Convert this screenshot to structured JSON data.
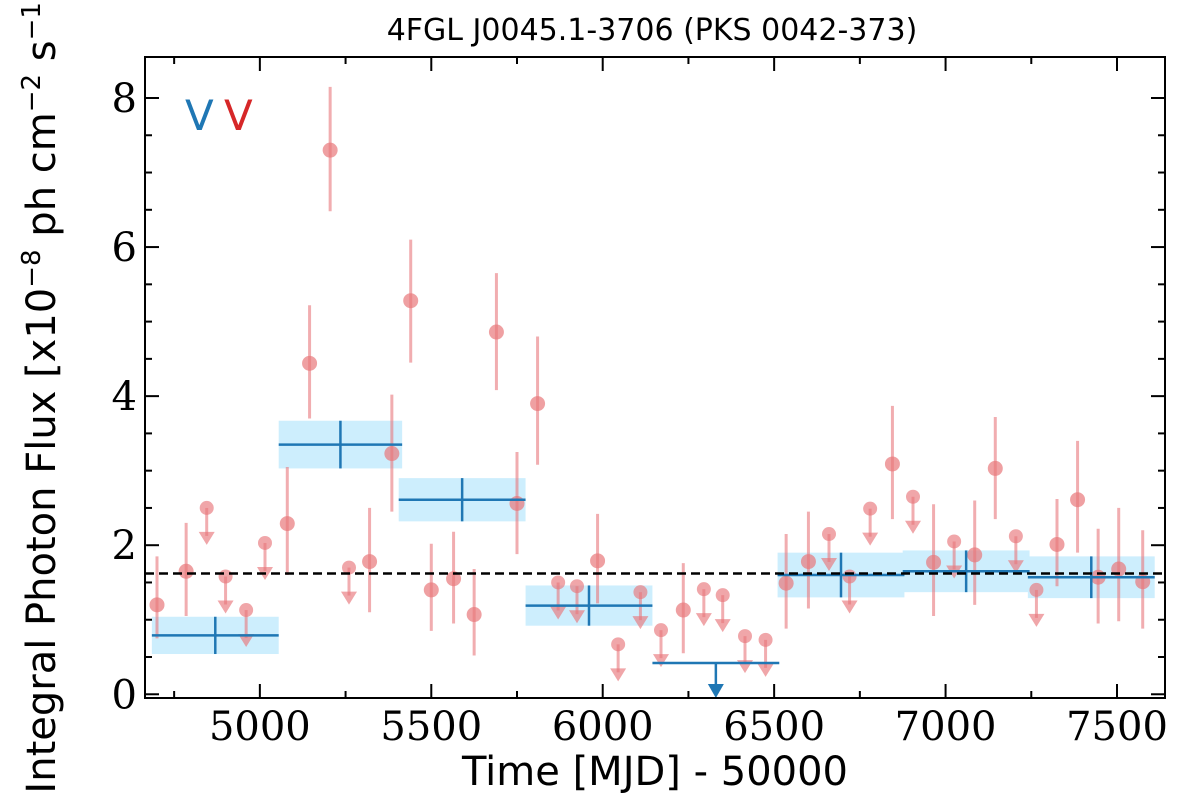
{
  "chart_data": {
    "type": "scatter",
    "title": "4FGL J0045.1-3706 (PKS 0042-373)",
    "xlabel": "Time [MJD] - 50000",
    "ylabel_main": "Integral Photon Flux [x10",
    "ylabel_exp1": "−8",
    "ylabel_mid": " ph cm",
    "ylabel_exp2": "−2",
    "ylabel_mid2": " s",
    "ylabel_exp3": "−1",
    "ylabel_end": "]",
    "xlim": [
      4665,
      7640
    ],
    "ylim": [
      -0.05,
      8.55
    ],
    "xticks": [
      5000,
      5500,
      6000,
      6500,
      7000,
      7500
    ],
    "yticks": [
      0,
      2,
      4,
      6,
      8
    ],
    "legend": {
      "position": "top-left",
      "marks": [
        {
          "text": "V",
          "color": "#1f77b4"
        },
        {
          "text": "V",
          "color": "#d62728"
        }
      ]
    },
    "mean_flux": 1.62,
    "colors": {
      "fine": "#e8777b",
      "coarse": "#1f77b4",
      "band": "#cdeefd",
      "mean_line": "#000000"
    },
    "coarse_bins": [
      {
        "x": 4870,
        "half_width": 185,
        "y": 0.79,
        "yerr": 0.25
      },
      {
        "x": 5235,
        "half_width": 180,
        "y": 3.35,
        "yerr": 0.32
      },
      {
        "x": 5590,
        "half_width": 185,
        "y": 2.61,
        "yerr": 0.29
      },
      {
        "x": 5960,
        "half_width": 185,
        "y": 1.19,
        "yerr": 0.27
      },
      {
        "x": 6330,
        "half_width": 185,
        "y": 0.42,
        "upper_limit": true
      },
      {
        "x": 6695,
        "half_width": 185,
        "y": 1.6,
        "yerr": 0.3
      },
      {
        "x": 7060,
        "half_width": 185,
        "y": 1.65,
        "yerr": 0.28
      },
      {
        "x": 7425,
        "half_width": 185,
        "y": 1.57,
        "yerr": 0.28
      }
    ],
    "fine_points": [
      {
        "x": 4700,
        "y": 1.2,
        "ylo": 0.75,
        "yhi": 1.85
      },
      {
        "x": 4785,
        "y": 1.65,
        "ylo": 1.05,
        "yhi": 2.3
      },
      {
        "x": 4845,
        "y": 2.5,
        "upper_limit": true
      },
      {
        "x": 4900,
        "y": 1.58,
        "upper_limit": true
      },
      {
        "x": 4960,
        "y": 1.13,
        "upper_limit": true
      },
      {
        "x": 5015,
        "y": 2.03,
        "upper_limit": true
      },
      {
        "x": 5080,
        "y": 2.29,
        "ylo": 1.6,
        "yhi": 3.05
      },
      {
        "x": 5145,
        "y": 4.44,
        "ylo": 3.7,
        "yhi": 5.22
      },
      {
        "x": 5205,
        "y": 7.3,
        "ylo": 6.48,
        "yhi": 8.15
      },
      {
        "x": 5260,
        "y": 1.7,
        "upper_limit": true
      },
      {
        "x": 5320,
        "y": 1.78,
        "ylo": 1.1,
        "yhi": 2.5
      },
      {
        "x": 5385,
        "y": 3.23,
        "ylo": 2.45,
        "yhi": 4.02
      },
      {
        "x": 5440,
        "y": 5.28,
        "ylo": 4.45,
        "yhi": 6.1
      },
      {
        "x": 5500,
        "y": 1.4,
        "ylo": 0.85,
        "yhi": 2.02
      },
      {
        "x": 5565,
        "y": 1.55,
        "ylo": 0.95,
        "yhi": 2.18
      },
      {
        "x": 5625,
        "y": 1.07,
        "ylo": 0.52,
        "yhi": 1.68
      },
      {
        "x": 5690,
        "y": 4.86,
        "ylo": 4.08,
        "yhi": 5.65
      },
      {
        "x": 5750,
        "y": 2.56,
        "ylo": 1.88,
        "yhi": 3.25
      },
      {
        "x": 5810,
        "y": 3.9,
        "ylo": 3.08,
        "yhi": 4.8
      },
      {
        "x": 5870,
        "y": 1.5,
        "upper_limit": true
      },
      {
        "x": 5925,
        "y": 1.45,
        "upper_limit": true
      },
      {
        "x": 5985,
        "y": 1.79,
        "ylo": 1.22,
        "yhi": 2.42
      },
      {
        "x": 6045,
        "y": 0.67,
        "upper_limit": true
      },
      {
        "x": 6110,
        "y": 1.37,
        "upper_limit": true
      },
      {
        "x": 6170,
        "y": 0.86,
        "upper_limit": true
      },
      {
        "x": 6235,
        "y": 1.13,
        "ylo": 0.55,
        "yhi": 1.76
      },
      {
        "x": 6295,
        "y": 1.41,
        "upper_limit": true
      },
      {
        "x": 6350,
        "y": 1.33,
        "upper_limit": true
      },
      {
        "x": 6415,
        "y": 0.78,
        "upper_limit": true
      },
      {
        "x": 6475,
        "y": 0.73,
        "upper_limit": true
      },
      {
        "x": 6535,
        "y": 1.49,
        "ylo": 0.88,
        "yhi": 2.15
      },
      {
        "x": 6600,
        "y": 1.78,
        "ylo": 1.15,
        "yhi": 2.45
      },
      {
        "x": 6660,
        "y": 2.15,
        "upper_limit": true
      },
      {
        "x": 6720,
        "y": 1.58,
        "upper_limit": true
      },
      {
        "x": 6780,
        "y": 2.49,
        "upper_limit": true
      },
      {
        "x": 6845,
        "y": 3.09,
        "ylo": 2.35,
        "yhi": 3.87
      },
      {
        "x": 6905,
        "y": 2.65,
        "upper_limit": true
      },
      {
        "x": 6965,
        "y": 1.77,
        "ylo": 1.05,
        "yhi": 2.55
      },
      {
        "x": 7025,
        "y": 2.05,
        "upper_limit": true
      },
      {
        "x": 7085,
        "y": 1.87,
        "ylo": 1.2,
        "yhi": 2.6
      },
      {
        "x": 7145,
        "y": 3.03,
        "ylo": 2.35,
        "yhi": 3.72
      },
      {
        "x": 7205,
        "y": 2.12,
        "upper_limit": true
      },
      {
        "x": 7265,
        "y": 1.4,
        "upper_limit": true
      },
      {
        "x": 7325,
        "y": 2.01,
        "ylo": 1.45,
        "yhi": 2.62
      },
      {
        "x": 7385,
        "y": 2.61,
        "ylo": 1.9,
        "yhi": 3.4
      },
      {
        "x": 7445,
        "y": 1.57,
        "ylo": 0.95,
        "yhi": 2.22
      },
      {
        "x": 7505,
        "y": 1.68,
        "ylo": 0.98,
        "yhi": 2.5
      },
      {
        "x": 7575,
        "y": 1.51,
        "ylo": 0.88,
        "yhi": 2.2
      }
    ]
  }
}
